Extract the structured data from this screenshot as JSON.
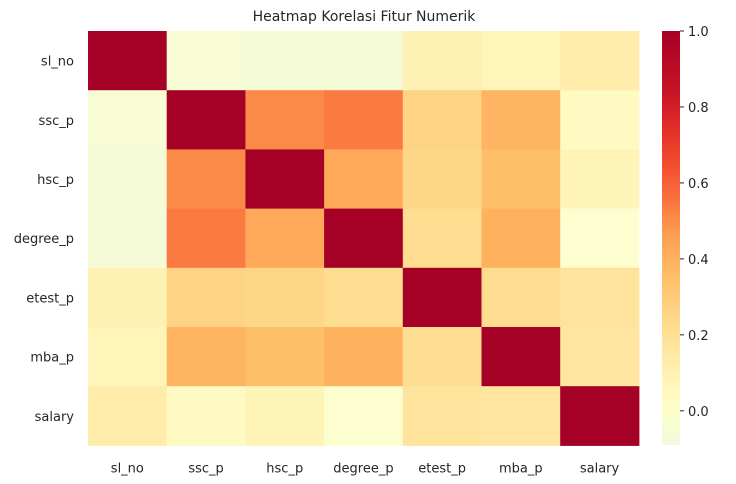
{
  "chart_data": {
    "type": "heatmap",
    "title": "Heatmap Korelasi Fitur Numerik",
    "x_labels": [
      "sl_no",
      "ssc_p",
      "hsc_p",
      "degree_p",
      "etest_p",
      "mba_p",
      "salary"
    ],
    "y_labels": [
      "sl_no",
      "ssc_p",
      "hsc_p",
      "degree_p",
      "etest_p",
      "mba_p",
      "salary"
    ],
    "values": [
      [
        1.0,
        -0.05,
        -0.06,
        -0.06,
        0.1,
        0.07,
        0.13
      ],
      [
        -0.05,
        1.0,
        0.51,
        0.54,
        0.26,
        0.39,
        0.04
      ],
      [
        -0.06,
        0.51,
        1.0,
        0.43,
        0.25,
        0.35,
        0.08
      ],
      [
        -0.06,
        0.54,
        0.43,
        1.0,
        0.22,
        0.4,
        -0.02
      ],
      [
        0.1,
        0.26,
        0.25,
        0.22,
        1.0,
        0.22,
        0.18
      ],
      [
        0.07,
        0.39,
        0.35,
        0.4,
        0.22,
        1.0,
        0.17
      ],
      [
        0.13,
        0.04,
        0.08,
        -0.02,
        0.18,
        0.17,
        1.0
      ]
    ],
    "vmin": -0.09,
    "vmax": 1.0,
    "colormap": "YlOrRd",
    "colorbar_ticks": [
      "0.0",
      "0.2",
      "0.4",
      "0.6",
      "0.8",
      "1.0"
    ],
    "colorbar_tick_values": [
      0.0,
      0.2,
      0.4,
      0.6,
      0.8,
      1.0
    ],
    "grid": false,
    "legend": "colorbar-right"
  }
}
